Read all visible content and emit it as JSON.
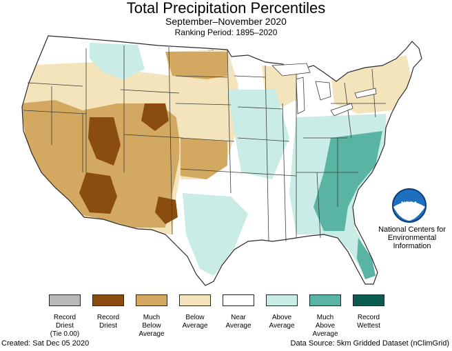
{
  "title": "Total Precipitation Percentiles",
  "subtitle": "September–November 2020",
  "ranking_period": "Ranking Period: 1895–2020",
  "legend": [
    {
      "label": "Record\nDriest\n(Tie 0.00)",
      "color": "#b8b8b8"
    },
    {
      "label": "Record\nDriest",
      "color": "#8a4c0f"
    },
    {
      "label": "Much\nBelow\nAverage",
      "color": "#d3a860"
    },
    {
      "label": "Below\nAverage",
      "color": "#f4e4bc"
    },
    {
      "label": "Near\nAverage",
      "color": "#ffffff"
    },
    {
      "label": "Above\nAverage",
      "color": "#c9ece6"
    },
    {
      "label": "Much\nAbove\nAverage",
      "color": "#5ab4a4"
    },
    {
      "label": "Record\nWettest",
      "color": "#0a5c50"
    }
  ],
  "agency": {
    "logo_text": "NOAA",
    "name": "National Centers for\nEnvironmental\nInformation"
  },
  "footer": {
    "created": "Created: Sat Dec 05 2020",
    "source": "Data Source: 5km Gridded Dataset (nClimGrid)"
  },
  "colors": {
    "record_driest_tie": "#b8b8b8",
    "record_driest": "#8a4c0f",
    "much_below": "#d3a860",
    "below": "#f4e4bc",
    "near": "#ffffff",
    "above": "#c9ece6",
    "much_above": "#5ab4a4",
    "record_wettest": "#0a5c50",
    "border": "#3a3a3a"
  }
}
